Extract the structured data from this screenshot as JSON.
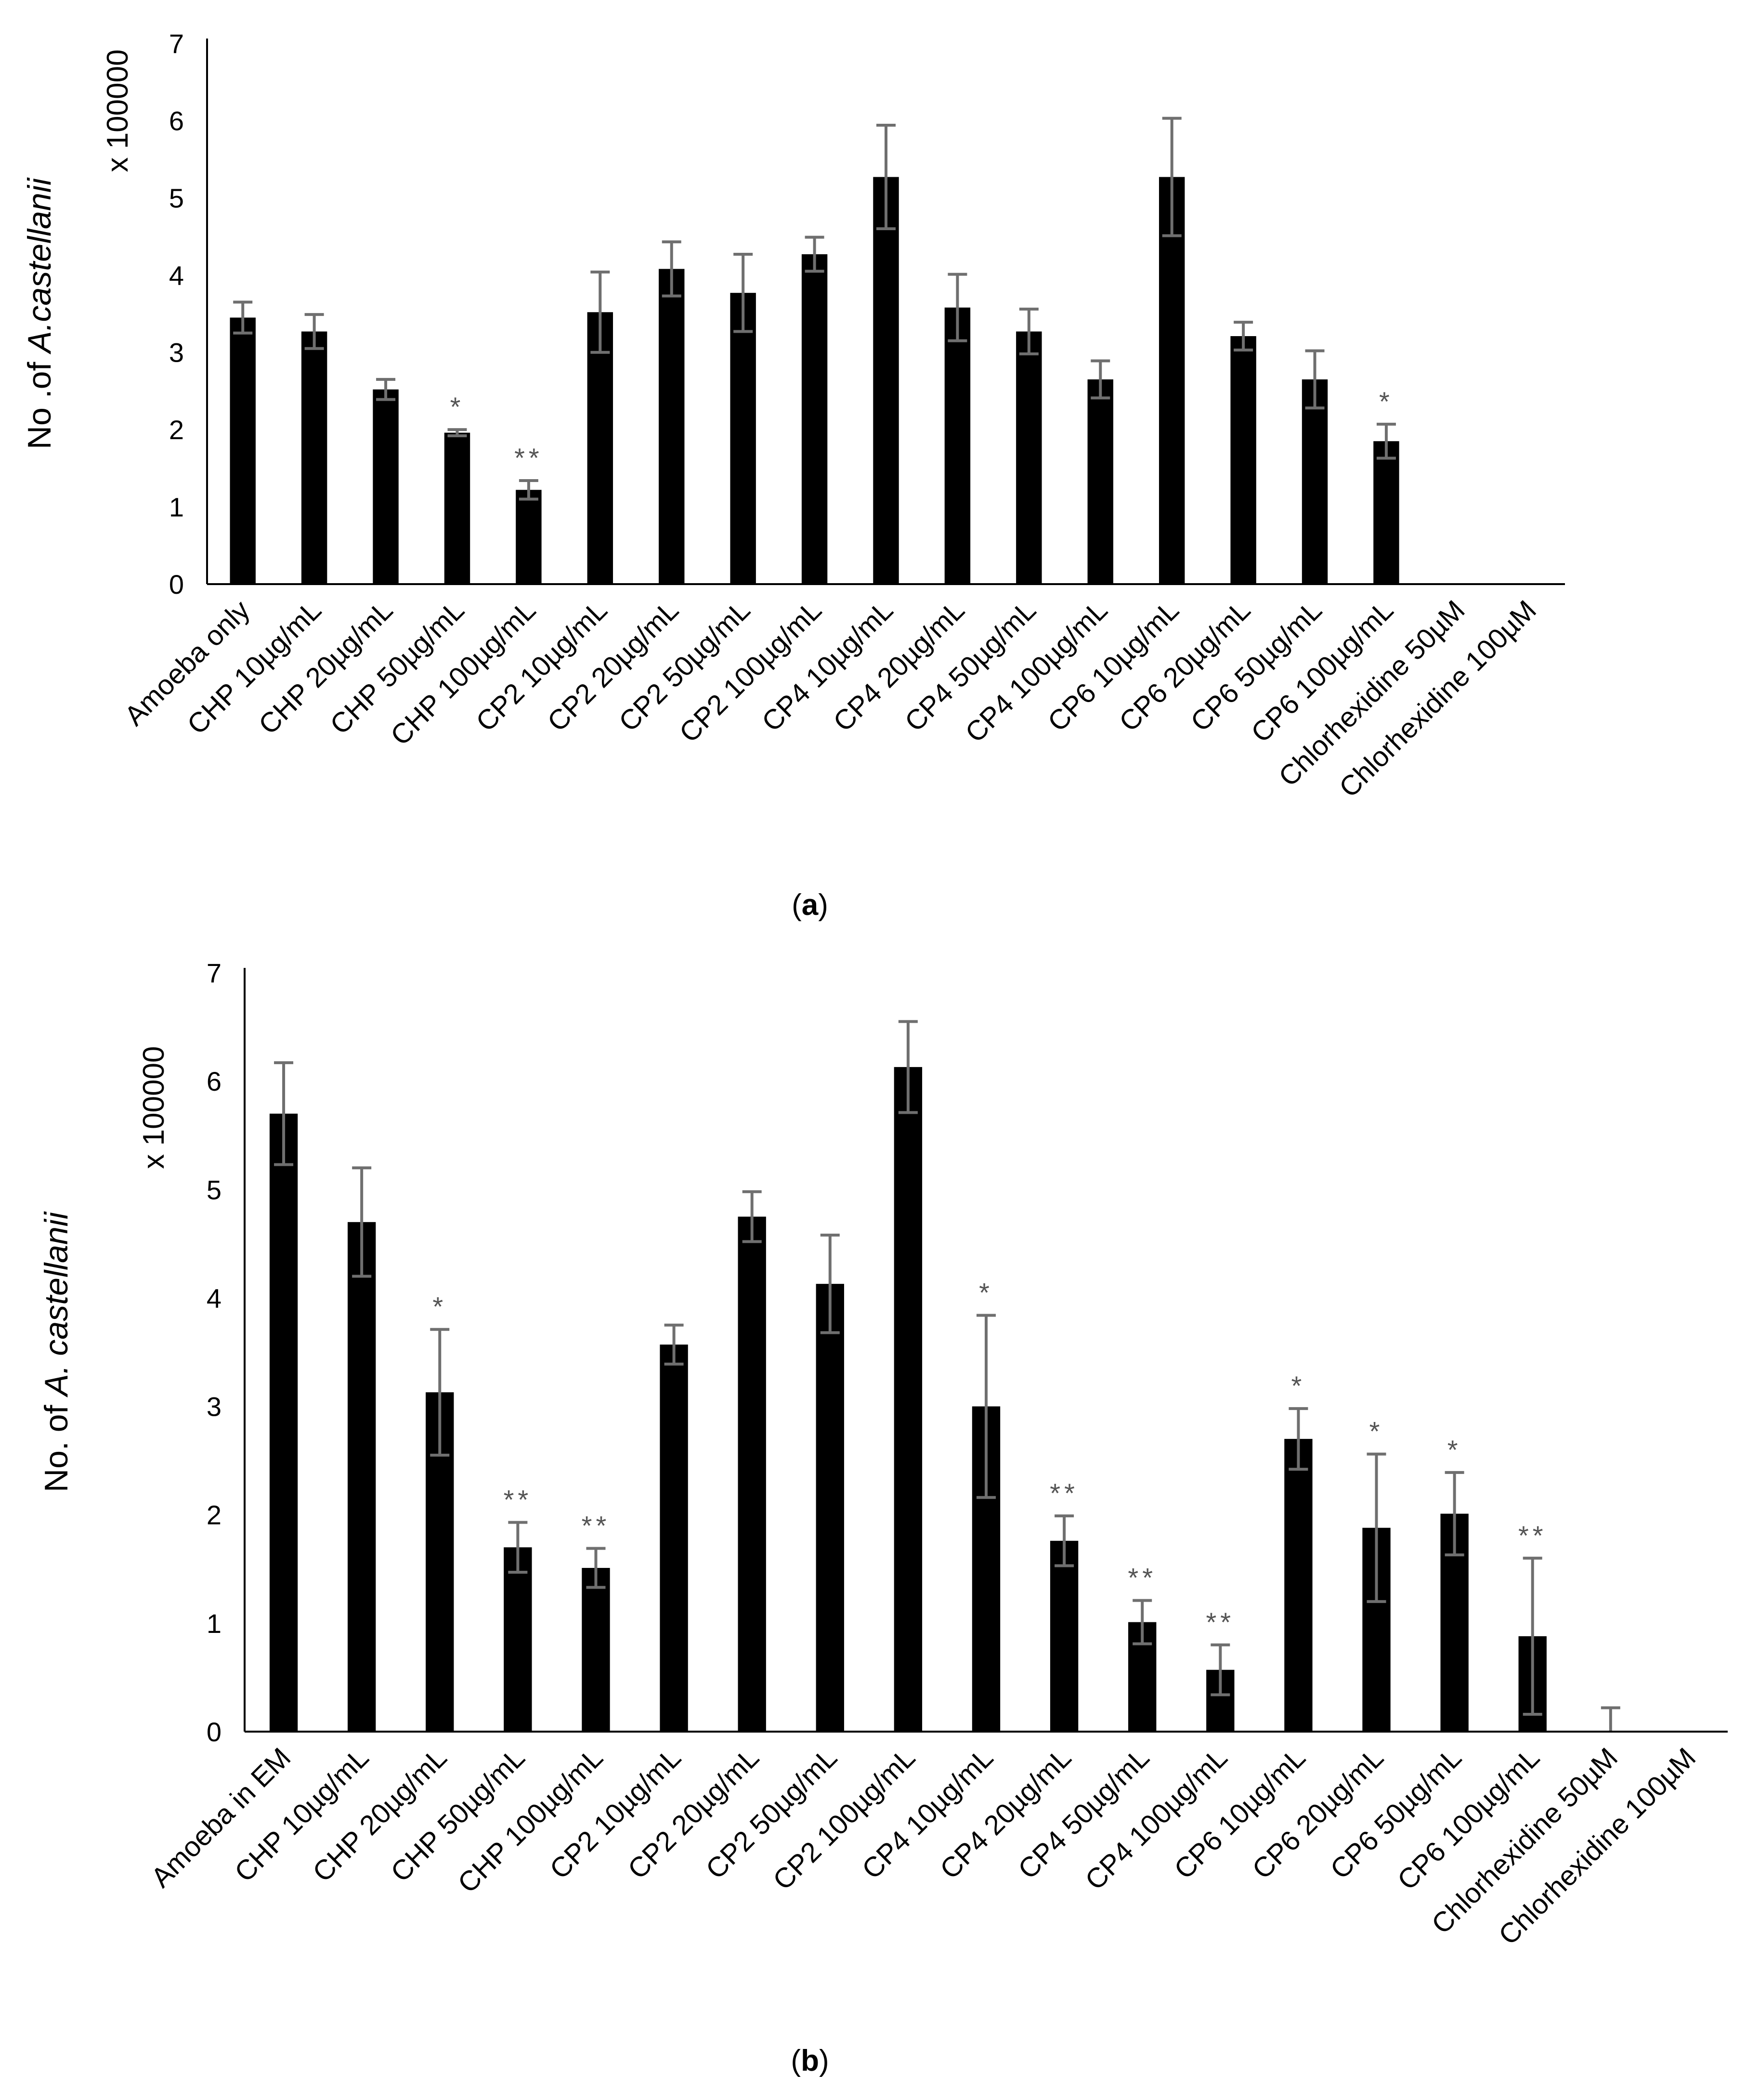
{
  "chart_data": [
    {
      "type": "bar",
      "panel_label": "(a)",
      "panel_letter": "a",
      "ylabel_main": "No .of ",
      "ylabel_species": "A.castellanii",
      "ylabel_scale": "x 100000",
      "ylim": [
        0,
        7
      ],
      "yticks": [
        0,
        1,
        2,
        3,
        4,
        5,
        6,
        7
      ],
      "grid": false,
      "categories": [
        "Amoeba only",
        "CHP 10µg/mL",
        "CHP 20µg/mL",
        "CHP 50µg/mL",
        "CHP 100µg/mL",
        "CP2 10µg/mL",
        "CP2 20µg/mL",
        "CP2 50µg/mL",
        "CP2 100µg/mL",
        "CP4 10µg/mL",
        "CP4 20µg/mL",
        "CP4 50µg/mL",
        "CP4 100µg/mL",
        "CP6 10µg/mL",
        "CP6 20µg/mL",
        "CP6 50µg/mL",
        "CP6 100µg/mL",
        "Chlorhexidine 50µM",
        "Chlorhexidine 100µM"
      ],
      "values": [
        3.45,
        3.27,
        2.52,
        1.96,
        1.22,
        3.52,
        4.08,
        3.77,
        4.27,
        5.27,
        3.58,
        3.27,
        2.65,
        5.27,
        3.21,
        2.65,
        1.85,
        0,
        0
      ],
      "errors": [
        0.2,
        0.22,
        0.13,
        0.04,
        0.12,
        0.52,
        0.35,
        0.5,
        0.22,
        0.67,
        0.43,
        0.29,
        0.24,
        0.76,
        0.18,
        0.37,
        0.22,
        0,
        0
      ],
      "significance": [
        "",
        "",
        "",
        "*",
        "**",
        "",
        "",
        "",
        "",
        "",
        "",
        "",
        "",
        "",
        "",
        "",
        "*",
        "",
        ""
      ]
    },
    {
      "type": "bar",
      "panel_label": "(b)",
      "panel_letter": "b",
      "ylabel_main": "No. of ",
      "ylabel_species": "A. castellanii",
      "ylabel_scale": "x 100000",
      "ylim": [
        0,
        7
      ],
      "yticks": [
        0,
        1,
        2,
        3,
        4,
        5,
        6,
        7
      ],
      "grid": false,
      "categories": [
        "Amoeba in EM",
        "CHP 10µg/mL",
        "CHP 20µg/mL",
        "CHP 50µg/mL",
        "CHP 100µg/mL",
        "CP2 10µg/mL",
        "CP2 20µg/mL",
        "CP2 50µg/mL",
        "CP2 100µg/mL",
        "CP4 10µg/mL",
        "CP4 20µg/mL",
        "CP4 50µg/mL",
        "CP4 100µg/mL",
        "CP6 10µg/mL",
        "CP6 20µg/mL",
        "CP6 50µg/mL",
        "CP6 100µg/mL",
        "Chlorhexidine 50µM",
        "Chlorhexidine 100µM"
      ],
      "values": [
        5.7,
        4.7,
        3.13,
        1.7,
        1.51,
        3.57,
        4.75,
        4.13,
        6.13,
        3.0,
        1.76,
        1.01,
        0.57,
        2.7,
        1.88,
        2.01,
        0.88,
        0,
        0
      ],
      "errors": [
        0.47,
        0.5,
        0.58,
        0.23,
        0.18,
        0.18,
        0.23,
        0.45,
        0.42,
        0.84,
        0.23,
        0.2,
        0.23,
        0.28,
        0.68,
        0.38,
        0.72,
        0.22,
        0
      ],
      "significance": [
        "",
        "",
        "*",
        "**",
        "**",
        "",
        "",
        "",
        "",
        "*",
        "**",
        "**",
        "**",
        "*",
        "*",
        "*",
        "**",
        "",
        ""
      ]
    }
  ]
}
